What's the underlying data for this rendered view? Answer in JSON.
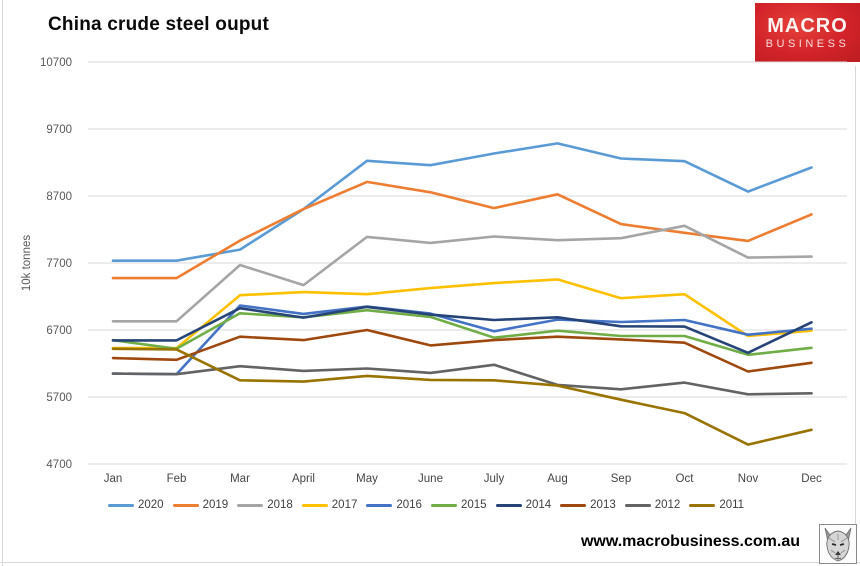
{
  "title": "China crude steel ouput",
  "logo": {
    "line1": "MACRO",
    "line2": "BUSINESS",
    "bg_color": "#d2232a",
    "text_color": "#ffffff"
  },
  "footer": {
    "url": "www.macrobusiness.com.au",
    "wolf_icon": "wolf-etching"
  },
  "chart_data": {
    "type": "line",
    "title": "China crude steel ouput",
    "xlabel": "",
    "ylabel": "10k tonnes",
    "x": [
      "Jan",
      "Feb",
      "Mar",
      "April",
      "May",
      "June",
      "July",
      "Aug",
      "Sep",
      "Oct",
      "Nov",
      "Dec"
    ],
    "yticks": [
      10700,
      9700,
      8700,
      7700,
      6700,
      5700,
      4700
    ],
    "ylim": [
      4700,
      10700
    ],
    "grid": true,
    "gridline_color": "#d9d9d9",
    "tick_label_color": "#595959",
    "legend_position": "bottom",
    "series": [
      {
        "name": "2020",
        "color": "#5B9BD5",
        "values": [
          7735,
          7735,
          7900,
          8505,
          9225,
          9160,
          9335,
          9485,
          9260,
          9220,
          8765,
          9125
        ]
      },
      {
        "name": "2019",
        "color": "#ED7D31",
        "values": [
          7475,
          7475,
          8035,
          8505,
          8910,
          8755,
          8520,
          8725,
          8280,
          8150,
          8030,
          8425
        ]
      },
      {
        "name": "2018",
        "color": "#A5A5A5",
        "values": [
          6830,
          6830,
          7670,
          7370,
          8090,
          8000,
          8095,
          8040,
          8070,
          8255,
          7780,
          7795
        ]
      },
      {
        "name": "2017",
        "color": "#FFC000",
        "values": [
          6430,
          6430,
          7220,
          7265,
          7235,
          7325,
          7400,
          7455,
          7175,
          7235,
          6610,
          6690
        ]
      },
      {
        "name": "2016",
        "color": "#4472C4",
        "values": [
          6050,
          6040,
          7065,
          6940,
          7050,
          6945,
          6680,
          6855,
          6820,
          6850,
          6630,
          6720
        ]
      },
      {
        "name": "2015",
        "color": "#70AD47",
        "values": [
          6550,
          6420,
          6950,
          6890,
          6995,
          6895,
          6585,
          6690,
          6610,
          6610,
          6330,
          6435
        ]
      },
      {
        "name": "2014",
        "color": "#264478",
        "values": [
          6545,
          6545,
          7025,
          6885,
          7045,
          6930,
          6850,
          6890,
          6755,
          6750,
          6360,
          6815
        ]
      },
      {
        "name": "2013",
        "color": "#9E480E",
        "values": [
          6280,
          6255,
          6600,
          6550,
          6700,
          6470,
          6550,
          6600,
          6560,
          6510,
          6080,
          6210
        ]
      },
      {
        "name": "2012",
        "color": "#636363",
        "values": [
          6050,
          6040,
          6160,
          6090,
          6125,
          6060,
          6180,
          5880,
          5815,
          5915,
          5740,
          5755
        ]
      },
      {
        "name": "2011",
        "color": "#997300",
        "values": [
          6420,
          6410,
          5950,
          5930,
          6015,
          5955,
          5950,
          5870,
          5660,
          5460,
          4990,
          5210
        ]
      }
    ]
  }
}
